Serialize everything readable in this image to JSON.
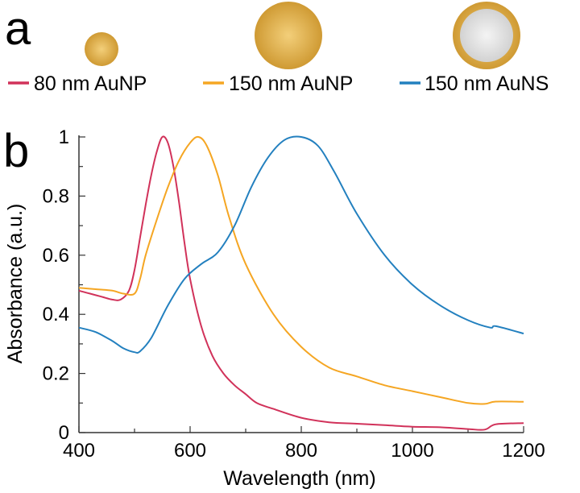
{
  "panel_labels": {
    "a": "a",
    "b": "b"
  },
  "particles": [
    {
      "kind": "solid",
      "series": "80 nm AuNP"
    },
    {
      "kind": "solid",
      "series": "150 nm AuNP"
    },
    {
      "kind": "shell",
      "series": "150 nm AuNS"
    }
  ],
  "colors": {
    "gold": "#D4A23C",
    "gold_light": "#F0C86A",
    "shell_inner": "#E6E6E6"
  },
  "chart_data": {
    "type": "line",
    "xlabel": "Wavelength (nm)",
    "ylabel": "Absorbance (a.u.)",
    "xlim": [
      400,
      1200
    ],
    "ylim": [
      0,
      1
    ],
    "xticks": [
      400,
      600,
      800,
      1000,
      1200
    ],
    "xtick_labels": [
      "400",
      "600",
      "800",
      "1000",
      "1200"
    ],
    "yticks": [
      0,
      0.2,
      0.4,
      0.6,
      0.8,
      1
    ],
    "ytick_labels": [
      "0",
      "0.2",
      "0.4",
      "0.6",
      "0.8",
      "1"
    ],
    "grid": false,
    "legend_position": "top",
    "series": [
      {
        "name": "80 nm AuNP",
        "color": "#D1325A",
        "x": [
          400,
          420,
          440,
          460,
          475,
          490,
          500,
          510,
          520,
          530,
          540,
          550,
          560,
          570,
          580,
          590,
          600,
          620,
          640,
          660,
          680,
          700,
          720,
          750,
          800,
          850,
          900,
          950,
          1000,
          1050,
          1100,
          1130,
          1150,
          1200
        ],
        "y": [
          0.48,
          0.47,
          0.46,
          0.45,
          0.45,
          0.48,
          0.55,
          0.66,
          0.77,
          0.87,
          0.95,
          1.0,
          0.98,
          0.9,
          0.78,
          0.64,
          0.52,
          0.36,
          0.26,
          0.2,
          0.16,
          0.13,
          0.1,
          0.08,
          0.05,
          0.035,
          0.03,
          0.025,
          0.02,
          0.018,
          0.012,
          0.01,
          0.028,
          0.032
        ]
      },
      {
        "name": "150 nm AuNP",
        "color": "#F5A623",
        "x": [
          400,
          430,
          460,
          480,
          500,
          510,
          520,
          540,
          560,
          580,
          600,
          615,
          630,
          650,
          670,
          700,
          750,
          800,
          850,
          900,
          950,
          1000,
          1050,
          1100,
          1130,
          1150,
          1200
        ],
        "y": [
          0.49,
          0.485,
          0.48,
          0.47,
          0.47,
          0.52,
          0.6,
          0.72,
          0.83,
          0.92,
          0.98,
          1.0,
          0.97,
          0.87,
          0.73,
          0.57,
          0.4,
          0.29,
          0.22,
          0.19,
          0.16,
          0.14,
          0.12,
          0.1,
          0.097,
          0.105,
          0.104
        ]
      },
      {
        "name": "150 nm AuNS",
        "color": "#2380BF",
        "x": [
          400,
          430,
          460,
          480,
          500,
          510,
          530,
          560,
          590,
          620,
          650,
          680,
          710,
          740,
          770,
          800,
          830,
          860,
          900,
          950,
          1000,
          1050,
          1100,
          1140,
          1150,
          1200
        ],
        "y": [
          0.355,
          0.34,
          0.31,
          0.285,
          0.272,
          0.275,
          0.32,
          0.43,
          0.52,
          0.57,
          0.61,
          0.7,
          0.83,
          0.93,
          0.99,
          1.0,
          0.97,
          0.88,
          0.74,
          0.6,
          0.5,
          0.43,
          0.38,
          0.355,
          0.36,
          0.335
        ]
      }
    ]
  }
}
